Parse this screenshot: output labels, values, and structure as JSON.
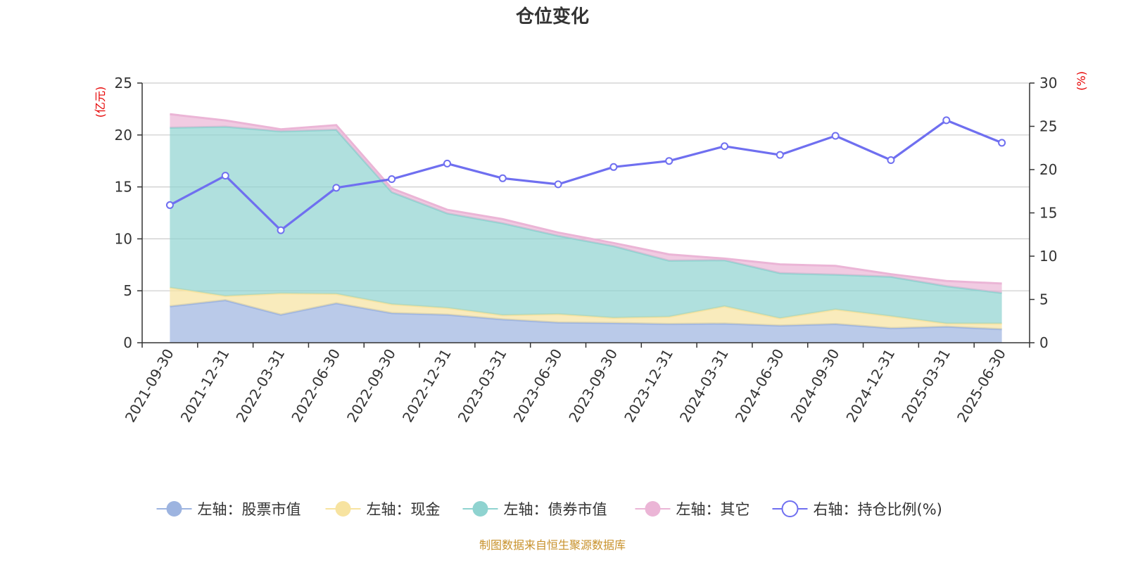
{
  "chart_data": {
    "type": "area",
    "title": "仓位变化",
    "left_axis": {
      "unit": "(亿元)",
      "ylim": [
        0,
        25
      ],
      "ticks": [
        "0",
        "5",
        "10",
        "15",
        "20",
        "25"
      ]
    },
    "right_axis": {
      "unit": "(%)",
      "ylim": [
        0,
        30
      ],
      "ticks": [
        "0",
        "5",
        "10",
        "15",
        "20",
        "25",
        "30"
      ]
    },
    "categories": [
      "2021-09-30",
      "2021-12-31",
      "2022-03-31",
      "2022-06-30",
      "2022-09-30",
      "2022-12-31",
      "2023-03-31",
      "2023-06-30",
      "2023-09-30",
      "2023-12-31",
      "2024-03-31",
      "2024-06-30",
      "2024-09-30",
      "2024-12-31",
      "2025-03-31",
      "2025-06-30"
    ],
    "stacked_series": [
      {
        "name": "左轴：股票市值",
        "color": "#9db4e0",
        "values": [
          3.5,
          4.1,
          2.7,
          3.8,
          2.85,
          2.7,
          2.25,
          1.95,
          1.9,
          1.8,
          1.85,
          1.65,
          1.8,
          1.4,
          1.55,
          1.3
        ]
      },
      {
        "name": "左轴：现金",
        "color": "#f7e3a0",
        "values": [
          1.8,
          0.4,
          2.05,
          0.9,
          0.85,
          0.65,
          0.4,
          0.8,
          0.5,
          0.7,
          1.65,
          0.7,
          1.4,
          1.15,
          0.3,
          0.55
        ]
      },
      {
        "name": "左轴：债券市值",
        "color": "#8fd3d0",
        "values": [
          15.4,
          16.3,
          15.6,
          15.8,
          10.8,
          9.1,
          8.85,
          7.55,
          6.9,
          5.4,
          4.45,
          4.35,
          3.35,
          3.8,
          3.6,
          2.95
        ]
      },
      {
        "name": "左轴：其它",
        "color": "#ebb5d6",
        "values": [
          1.3,
          0.6,
          0.2,
          0.45,
          0.35,
          0.35,
          0.4,
          0.3,
          0.3,
          0.6,
          0.15,
          0.85,
          0.85,
          0.25,
          0.5,
          0.9
        ]
      }
    ],
    "line_series": {
      "name": "右轴：持仓比例(%)",
      "color": "#6f6ff0",
      "axis": "right",
      "values": [
        15.9,
        19.3,
        13.0,
        17.9,
        18.9,
        20.7,
        19.0,
        18.3,
        20.3,
        21.0,
        22.7,
        21.7,
        23.9,
        21.1,
        25.7,
        23.1
      ]
    },
    "legend_position": "bottom",
    "grid": true
  },
  "source": "制图数据来自恒生聚源数据库"
}
